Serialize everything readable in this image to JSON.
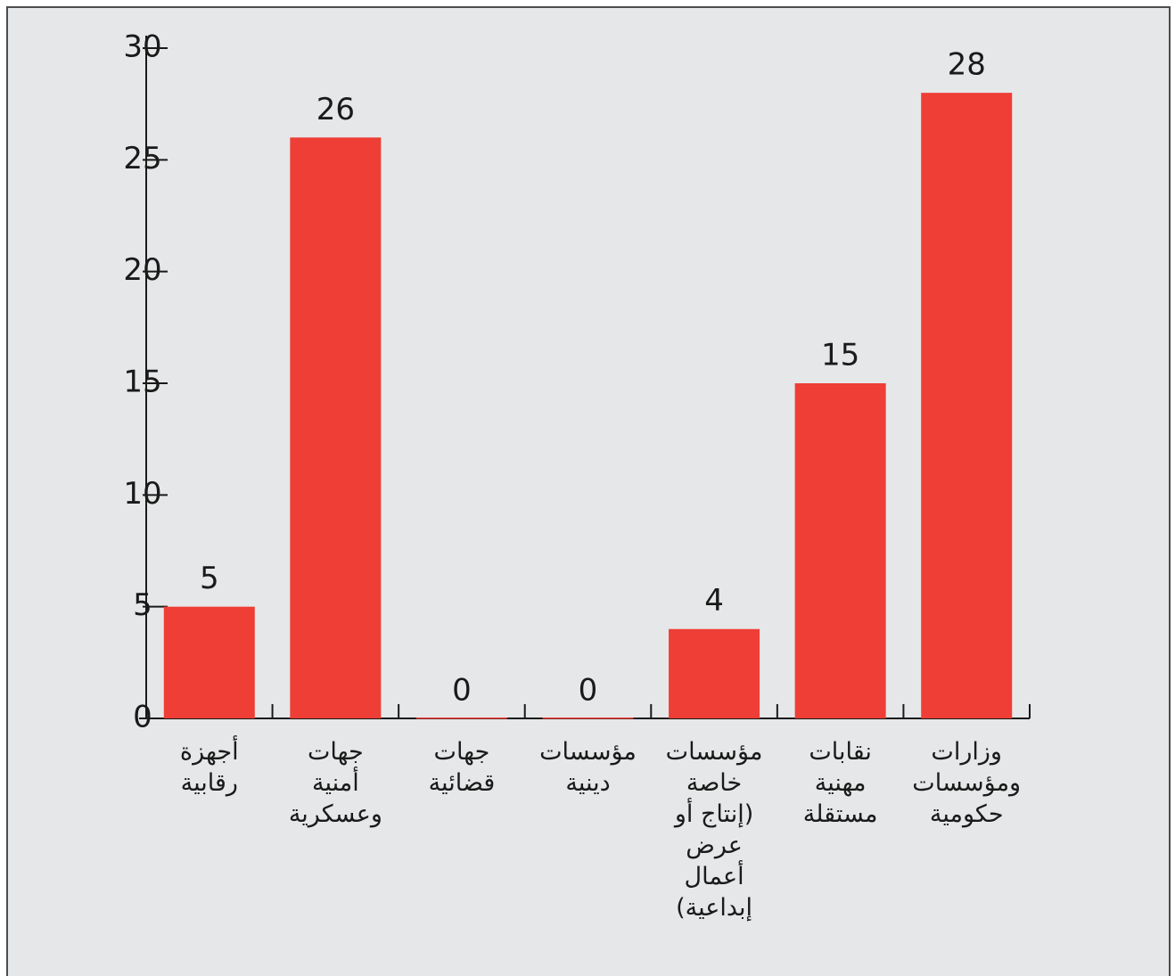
{
  "chart_data": {
    "type": "bar",
    "categories": [
      "أجهزة رقابية",
      "جهات أمنية وعسكرية",
      "جهات قضائية",
      "مؤسسات دينية",
      "مؤسسات خاصة (إنتاج أو عرض أعمال إبداعية)",
      "نقابات مهنية مستقلة",
      "وزارات ومؤسسات حكومية"
    ],
    "values": [
      5,
      26,
      0,
      0,
      4,
      15,
      28
    ],
    "color": "#ee3e36",
    "ylim": [
      0,
      30
    ],
    "yticks": [
      0,
      5,
      10,
      15,
      20,
      25,
      30
    ],
    "grid": false
  }
}
